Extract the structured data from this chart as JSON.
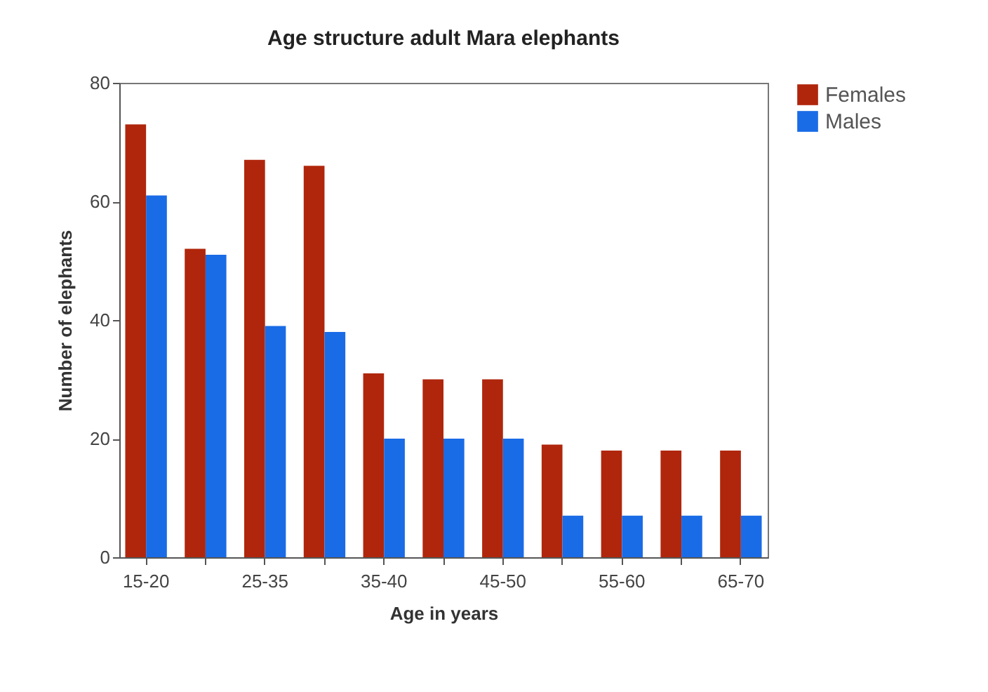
{
  "chart_data": {
    "type": "bar",
    "title": "Age structure adult Mara elephants",
    "xlabel": "Age in years",
    "ylabel": "Number of elephants",
    "categories": [
      "15-20",
      null,
      "25-35",
      null,
      "35-40",
      null,
      "45-50",
      null,
      "55-60",
      null,
      "65-70"
    ],
    "series": [
      {
        "name": "Females",
        "color": "#b0260c",
        "values": [
          73,
          52,
          67,
          66,
          31,
          30,
          30,
          19,
          18,
          18,
          18
        ]
      },
      {
        "name": "Males",
        "color": "#1a6be6",
        "values": [
          61,
          51,
          39,
          38,
          20,
          20,
          20,
          7,
          7,
          7,
          7
        ]
      }
    ],
    "ylim": [
      0,
      80
    ],
    "yticks": [
      0,
      20,
      40,
      60,
      80
    ],
    "grid": false,
    "legend": "top right"
  }
}
